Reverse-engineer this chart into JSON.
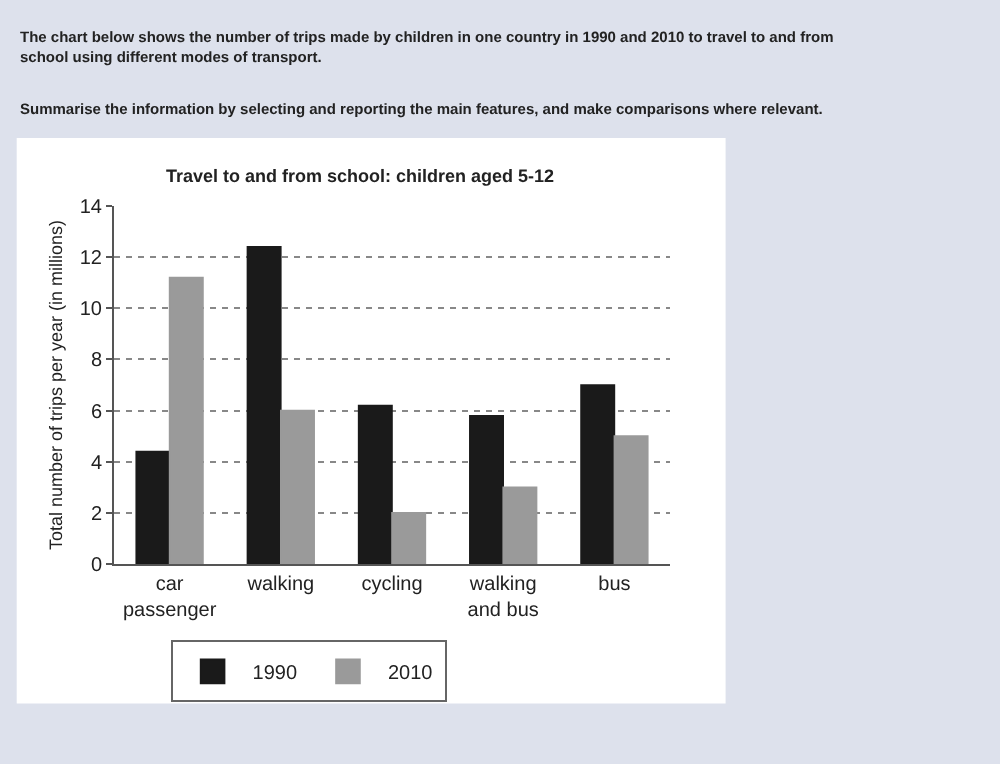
{
  "chart_data": {
    "type": "bar",
    "title": "Travel to and from school: children aged 5-12",
    "annotations": [
      "The chart below shows the number of trips made by children in one country in 1990 and 2010 to travel to and from school using different modes of transport.",
      "Summarise the information by selecting and reporting the main features, and make comparisons where relevant."
    ],
    "ylabel": "Total number of trips per year (in millions)",
    "categories": [
      "car passenger",
      "walking",
      "cycling",
      "walking and bus",
      "bus"
    ],
    "series": [
      {
        "name": "1990",
        "color": "#1a1a1a",
        "values": [
          4.4,
          12.4,
          6.2,
          5.8,
          7
        ]
      },
      {
        "name": "2010",
        "color": "#9a9a9a",
        "values": [
          11.2,
          6,
          2,
          3,
          5
        ]
      }
    ],
    "ylim": [
      0,
      14
    ],
    "yticks": [
      0,
      2,
      4,
      6,
      8,
      10,
      12,
      14
    ],
    "grid": "y",
    "legend": "bottom"
  }
}
